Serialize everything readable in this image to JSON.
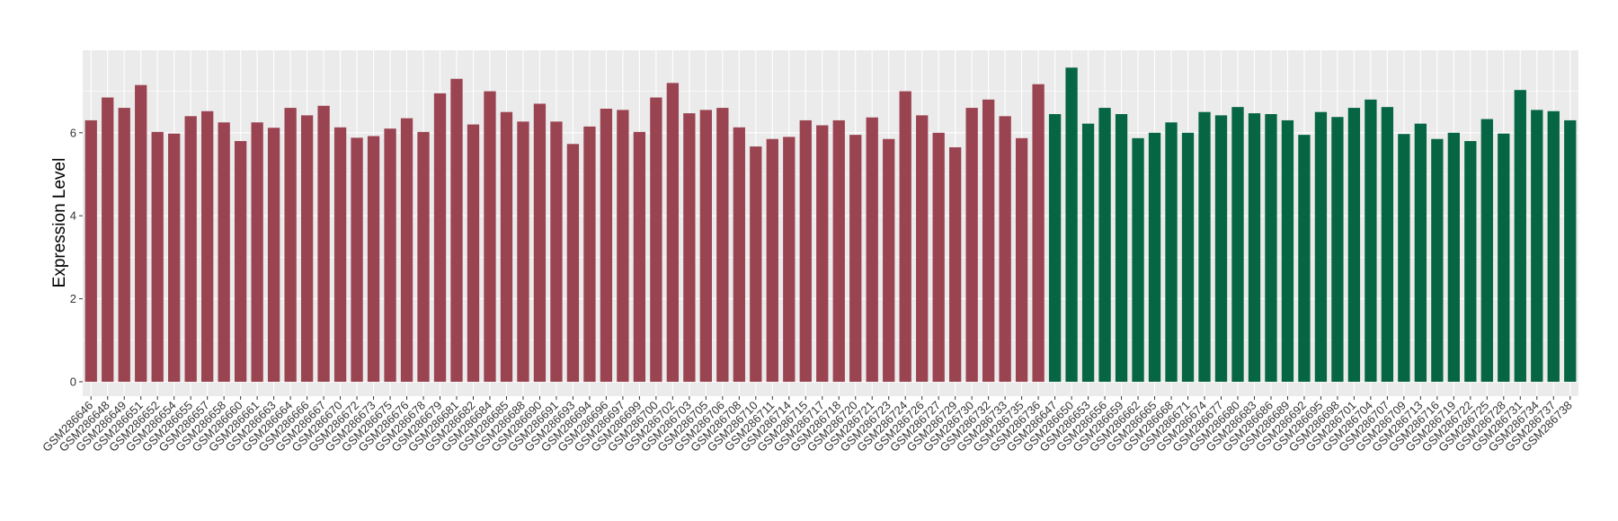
{
  "chart_data": {
    "type": "bar",
    "title": "",
    "xlabel": "",
    "ylabel": "Expression Level",
    "ylim": [
      0,
      8.1
    ],
    "yticks": [
      0,
      2,
      4,
      6
    ],
    "grid": true,
    "legend": "none",
    "panel_background": "#EBEBEB",
    "grid_color": "#FFFFFF",
    "colors": {
      "group_1": "#9B4451",
      "group_2": "#066644"
    },
    "categories": [
      "GSM286646",
      "GSM286648",
      "GSM286649",
      "GSM286651",
      "GSM286652",
      "GSM286654",
      "GSM286655",
      "GSM286657",
      "GSM286658",
      "GSM286660",
      "GSM286661",
      "GSM286663",
      "GSM286664",
      "GSM286666",
      "GSM286667",
      "GSM286670",
      "GSM286672",
      "GSM286673",
      "GSM286675",
      "GSM286676",
      "GSM286678",
      "GSM286679",
      "GSM286681",
      "GSM286682",
      "GSM286684",
      "GSM286685",
      "GSM286688",
      "GSM286690",
      "GSM286691",
      "GSM286693",
      "GSM286694",
      "GSM286696",
      "GSM286697",
      "GSM286699",
      "GSM286700",
      "GSM286702",
      "GSM286703",
      "GSM286705",
      "GSM286706",
      "GSM286708",
      "GSM286710",
      "GSM286711",
      "GSM286714",
      "GSM286715",
      "GSM286717",
      "GSM286718",
      "GSM286720",
      "GSM286721",
      "GSM286723",
      "GSM286724",
      "GSM286726",
      "GSM286727",
      "GSM286729",
      "GSM286730",
      "GSM286732",
      "GSM286733",
      "GSM286735",
      "GSM286736",
      "GSM286647",
      "GSM286650",
      "GSM286653",
      "GSM286656",
      "GSM286659",
      "GSM286662",
      "GSM286665",
      "GSM286668",
      "GSM286671",
      "GSM286674",
      "GSM286677",
      "GSM286680",
      "GSM286683",
      "GSM286686",
      "GSM286689",
      "GSM286692",
      "GSM286695",
      "GSM286698",
      "GSM286701",
      "GSM286704",
      "GSM286707",
      "GSM286709",
      "GSM286713",
      "GSM286716",
      "GSM286719",
      "GSM286722",
      "GSM286725",
      "GSM286728",
      "GSM286731",
      "GSM286734",
      "GSM286737",
      "GSM286738"
    ],
    "values": [
      6.3,
      6.85,
      6.6,
      7.15,
      6.02,
      5.98,
      6.4,
      6.52,
      6.25,
      5.8,
      6.25,
      6.12,
      6.6,
      6.42,
      6.65,
      6.13,
      5.88,
      5.92,
      6.1,
      6.35,
      6.02,
      6.95,
      7.3,
      6.2,
      7.0,
      6.5,
      6.27,
      6.7,
      6.27,
      5.73,
      6.15,
      6.58,
      6.55,
      6.02,
      6.85,
      7.2,
      6.47,
      6.55,
      6.6,
      6.13,
      5.67,
      5.85,
      5.9,
      6.3,
      6.18,
      6.3,
      5.95,
      6.37,
      5.85,
      7.0,
      6.42,
      6.0,
      5.65,
      6.6,
      6.8,
      6.4,
      5.87,
      7.17,
      6.45,
      7.57,
      6.22,
      6.6,
      6.45,
      5.87,
      6.0,
      6.25,
      6.0,
      6.5,
      6.42,
      6.62,
      6.47,
      6.45,
      6.3,
      5.95,
      6.5,
      6.38,
      6.6,
      6.8,
      6.62,
      5.97,
      6.22,
      5.85,
      6.0,
      5.8,
      6.33,
      5.98,
      7.03,
      6.55,
      6.52,
      6.3
    ],
    "groups": [
      1,
      1,
      1,
      1,
      1,
      1,
      1,
      1,
      1,
      1,
      1,
      1,
      1,
      1,
      1,
      1,
      1,
      1,
      1,
      1,
      1,
      1,
      1,
      1,
      1,
      1,
      1,
      1,
      1,
      1,
      1,
      1,
      1,
      1,
      1,
      1,
      1,
      1,
      1,
      1,
      1,
      1,
      1,
      1,
      1,
      1,
      1,
      1,
      1,
      1,
      1,
      1,
      1,
      1,
      1,
      1,
      1,
      1,
      2,
      2,
      2,
      2,
      2,
      2,
      2,
      2,
      2,
      2,
      2,
      2,
      2,
      2,
      2,
      2,
      2,
      2,
      2,
      2,
      2,
      2,
      2,
      2,
      2,
      2,
      2,
      2,
      2,
      2,
      2,
      2
    ]
  }
}
